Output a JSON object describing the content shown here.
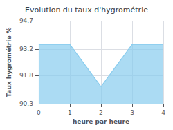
{
  "chart_data": {
    "type": "area",
    "title": "Evolution du taux d'hygrométrie",
    "xlabel": "heure par heure",
    "ylabel": "Taux hygrométrie %",
    "x": [
      0,
      1,
      2,
      3,
      4
    ],
    "values": [
      93.45,
      93.45,
      91.2,
      93.45,
      93.45
    ],
    "color": "#88ccee",
    "xlim": [
      0,
      4
    ],
    "xticks": [
      0,
      1,
      2,
      3,
      4
    ],
    "ylim": [
      90.3,
      94.7
    ],
    "yticks": [
      90.3,
      91.8,
      93.2,
      94.7
    ],
    "grid": true
  }
}
